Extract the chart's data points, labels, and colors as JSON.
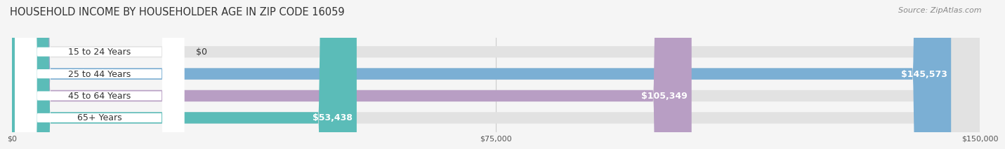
{
  "title": "HOUSEHOLD INCOME BY HOUSEHOLDER AGE IN ZIP CODE 16059",
  "source": "Source: ZipAtlas.com",
  "categories": [
    "15 to 24 Years",
    "25 to 44 Years",
    "45 to 64 Years",
    "65+ Years"
  ],
  "values": [
    0,
    145573,
    105349,
    53438
  ],
  "bar_colors": [
    "#f4a0a8",
    "#7bafd4",
    "#b89ec4",
    "#5bbcb8"
  ],
  "bg_color": "#f5f5f5",
  "bar_bg_color": "#e2e2e2",
  "xlim": [
    0,
    150000
  ],
  "xtick_labels": [
    "$0",
    "$75,000",
    "$150,000"
  ],
  "value_labels": [
    "$0",
    "$145,573",
    "$105,349",
    "$53,438"
  ],
  "title_fontsize": 10.5,
  "source_fontsize": 8,
  "bar_height": 0.52,
  "label_fontsize": 9
}
